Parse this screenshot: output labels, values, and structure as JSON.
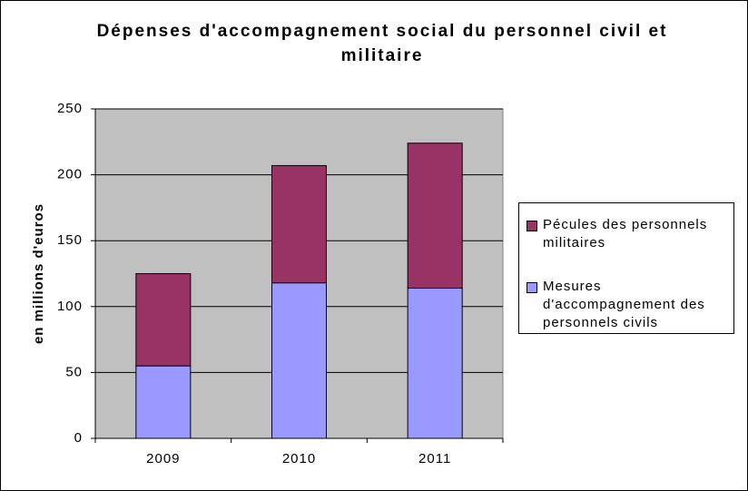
{
  "chart_data": {
    "type": "stacked_bar",
    "title": "Dépenses d'accompagnement social du personnel civil et militaire",
    "y_label": "en millions d'euros",
    "categories": [
      "2009",
      "2010",
      "2011"
    ],
    "series": [
      {
        "name": "Mesures d'accompagnement des personnels civils",
        "color": "#9999ff",
        "values": [
          55,
          118,
          114
        ]
      },
      {
        "name": "Pécules des personnels militaires",
        "color": "#993366",
        "values": [
          70,
          89,
          110
        ]
      }
    ],
    "ylim": [
      0,
      250
    ],
    "yticks": [
      0,
      50,
      100,
      150,
      200,
      250
    ],
    "grid": true,
    "legend": "right"
  }
}
